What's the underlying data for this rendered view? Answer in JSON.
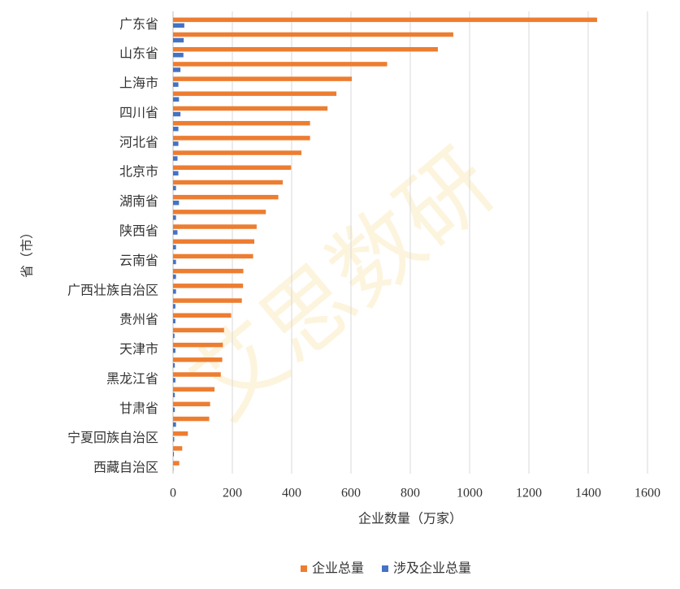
{
  "chart_data": {
    "type": "hbar",
    "y_label": "省（市）",
    "x_label": "企业数量（万家）",
    "watermark": "艾思数研",
    "categories": [
      "广东省",
      null,
      "山东省",
      null,
      "上海市",
      null,
      "四川省",
      null,
      "河北省",
      null,
      "北京市",
      null,
      "湖南省",
      null,
      "陕西省",
      null,
      "云南省",
      null,
      "广西壮族自治区",
      null,
      "贵州省",
      null,
      "天津市",
      null,
      "黑龙江省",
      null,
      "甘肃省",
      null,
      "宁夏回族自治区",
      null,
      "西藏自治区"
    ],
    "series": [
      {
        "name": "企业总量",
        "color": "#ed7d31",
        "values": [
          1430,
          945,
          893,
          722,
          603,
          551,
          521,
          462,
          462,
          433,
          398,
          370,
          355,
          313,
          282,
          274,
          270,
          237,
          236,
          232,
          196,
          172,
          168,
          166,
          161,
          140,
          125,
          122,
          50,
          31,
          21
        ]
      },
      {
        "name": "涉及企业总量",
        "color": "#4472c4",
        "values": [
          38,
          36,
          35,
          25,
          18,
          20,
          25,
          18,
          18,
          15,
          18,
          10,
          20,
          10,
          15,
          10,
          10,
          10,
          10,
          8,
          8,
          5,
          8,
          6,
          8,
          6,
          6,
          10,
          4,
          3,
          1
        ]
      }
    ],
    "xlim": [
      0,
      1600
    ],
    "xticks": [
      0,
      200,
      400,
      600,
      800,
      1000,
      1200,
      1400,
      1600
    ],
    "grid": true,
    "legend": "bottom"
  }
}
